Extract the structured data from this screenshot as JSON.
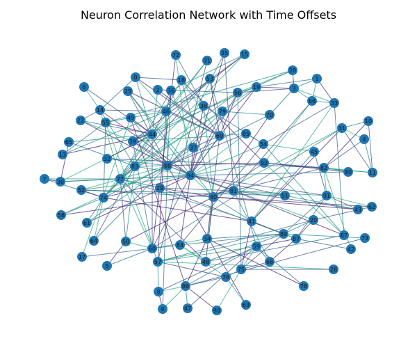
{
  "title": "Neuron Correlation Network with Time Offsets",
  "colors": {
    "node_fill": "#1f77b4",
    "label": "#1a1a1a",
    "edge_palette": [
      "#482475",
      "#3b528b",
      "#2c728e",
      "#21918c",
      "#28ae80"
    ]
  },
  "chart_data": {
    "type": "network",
    "title": "Neuron Correlation Network with Time Offsets",
    "node_ids": [
      "0",
      "1",
      "2",
      "3",
      "4",
      "5",
      "6",
      "7",
      "8",
      "9",
      "10",
      "11",
      "12",
      "13",
      "14",
      "15",
      "16",
      "17",
      "18",
      "19",
      "20",
      "21",
      "22",
      "23",
      "24",
      "25",
      "26",
      "27",
      "28",
      "29",
      "30",
      "31",
      "32",
      "33",
      "34",
      "35",
      "36",
      "37",
      "38",
      "39",
      "40",
      "41",
      "42",
      "43",
      "44",
      "45",
      "46",
      "47",
      "48",
      "49",
      "50",
      "51",
      "52",
      "53",
      "54",
      "55",
      "56",
      "57",
      "58",
      "59",
      "60",
      "61",
      "62",
      "63",
      "64",
      "65",
      "66",
      "67",
      "68",
      "69",
      "70",
      "71",
      "72",
      "73",
      "74",
      "75",
      "76",
      "77",
      "78",
      "79",
      "80",
      "81",
      "82",
      "83",
      "84",
      "85",
      "86",
      "87",
      "88",
      "89",
      "90",
      "91",
      "92",
      "93",
      "94"
    ],
    "edges": [
      [
        "0",
        "44"
      ],
      [
        "0",
        "69"
      ],
      [
        "0",
        "14"
      ],
      [
        "0",
        "46"
      ],
      [
        "0",
        "18"
      ],
      [
        "1",
        "3"
      ],
      [
        "1",
        "33"
      ],
      [
        "1",
        "19"
      ],
      [
        "1",
        "66"
      ],
      [
        "2",
        "36"
      ],
      [
        "2",
        "44"
      ],
      [
        "2",
        "69"
      ],
      [
        "2",
        "56"
      ],
      [
        "3",
        "33"
      ],
      [
        "3",
        "56"
      ],
      [
        "3",
        "66"
      ],
      [
        "3",
        "19"
      ],
      [
        "3",
        "70"
      ],
      [
        "4",
        "31"
      ],
      [
        "4",
        "82"
      ],
      [
        "4",
        "11"
      ],
      [
        "5",
        "50"
      ],
      [
        "5",
        "60"
      ],
      [
        "6",
        "14"
      ],
      [
        "6",
        "44"
      ],
      [
        "7",
        "77"
      ],
      [
        "7",
        "30"
      ],
      [
        "7",
        "74"
      ],
      [
        "8",
        "86"
      ],
      [
        "8",
        "59"
      ],
      [
        "8",
        "57"
      ],
      [
        "9",
        "8"
      ],
      [
        "9",
        "88"
      ],
      [
        "9",
        "86"
      ],
      [
        "10",
        "11"
      ],
      [
        "10",
        "31"
      ],
      [
        "10",
        "82"
      ],
      [
        "11",
        "92"
      ],
      [
        "11",
        "82"
      ],
      [
        "11",
        "31"
      ],
      [
        "13",
        "46"
      ],
      [
        "13",
        "44"
      ],
      [
        "13",
        "55"
      ],
      [
        "14",
        "77"
      ],
      [
        "14",
        "46"
      ],
      [
        "14",
        "83"
      ],
      [
        "14",
        "94"
      ],
      [
        "14",
        "22"
      ],
      [
        "15",
        "74"
      ],
      [
        "15",
        "46"
      ],
      [
        "15",
        "36"
      ],
      [
        "15",
        "39"
      ],
      [
        "17",
        "60"
      ],
      [
        "17",
        "49"
      ],
      [
        "18",
        "44"
      ],
      [
        "18",
        "69"
      ],
      [
        "18",
        "92"
      ],
      [
        "18",
        "40"
      ],
      [
        "19",
        "77"
      ],
      [
        "19",
        "88"
      ],
      [
        "19",
        "56"
      ],
      [
        "19",
        "94"
      ],
      [
        "20",
        "57"
      ],
      [
        "20",
        "88"
      ],
      [
        "20",
        "87"
      ],
      [
        "20",
        "89"
      ],
      [
        "22",
        "88"
      ],
      [
        "22",
        "44"
      ],
      [
        "22",
        "39"
      ],
      [
        "25",
        "88"
      ],
      [
        "25",
        "40"
      ],
      [
        "25",
        "69"
      ],
      [
        "25",
        "94"
      ],
      [
        "26",
        "57"
      ],
      [
        "26",
        "75"
      ],
      [
        "28",
        "55"
      ],
      [
        "28",
        "3"
      ],
      [
        "28",
        "39"
      ],
      [
        "28",
        "56"
      ],
      [
        "29",
        "89"
      ],
      [
        "29",
        "77"
      ],
      [
        "29",
        "40"
      ],
      [
        "29",
        "81"
      ],
      [
        "30",
        "56"
      ],
      [
        "30",
        "77"
      ],
      [
        "30",
        "94"
      ],
      [
        "31",
        "41"
      ],
      [
        "31",
        "60"
      ],
      [
        "31",
        "40"
      ],
      [
        "32",
        "82"
      ],
      [
        "32",
        "88"
      ],
      [
        "32",
        "44"
      ],
      [
        "33",
        "67"
      ],
      [
        "33",
        "41"
      ],
      [
        "33",
        "54"
      ],
      [
        "34",
        "40"
      ],
      [
        "34",
        "86"
      ],
      [
        "34",
        "89"
      ],
      [
        "34",
        "60"
      ],
      [
        "35",
        "81"
      ],
      [
        "35",
        "88"
      ],
      [
        "35",
        "94"
      ],
      [
        "36",
        "77"
      ],
      [
        "36",
        "37"
      ],
      [
        "36",
        "46"
      ],
      [
        "36",
        "88"
      ],
      [
        "37",
        "94"
      ],
      [
        "37",
        "88"
      ],
      [
        "37",
        "83"
      ],
      [
        "37",
        "69"
      ],
      [
        "38",
        "39"
      ],
      [
        "38",
        "94"
      ],
      [
        "38",
        "54"
      ],
      [
        "38",
        "40"
      ],
      [
        "39",
        "88"
      ],
      [
        "39",
        "69"
      ],
      [
        "39",
        "94"
      ],
      [
        "39",
        "60"
      ],
      [
        "40",
        "94"
      ],
      [
        "40",
        "92"
      ],
      [
        "40",
        "81"
      ],
      [
        "40",
        "62"
      ],
      [
        "40",
        "41"
      ],
      [
        "41",
        "89"
      ],
      [
        "41",
        "87"
      ],
      [
        "41",
        "77"
      ],
      [
        "41",
        "74"
      ],
      [
        "42",
        "87"
      ],
      [
        "42",
        "82"
      ],
      [
        "43",
        "81"
      ],
      [
        "43",
        "51"
      ],
      [
        "43",
        "40"
      ],
      [
        "43",
        "91"
      ],
      [
        "44",
        "83"
      ],
      [
        "44",
        "60"
      ],
      [
        "44",
        "77"
      ],
      [
        "44",
        "49"
      ],
      [
        "45",
        "41"
      ],
      [
        "45",
        "54"
      ],
      [
        "45",
        "91"
      ],
      [
        "46",
        "49"
      ],
      [
        "46",
        "57"
      ],
      [
        "46",
        "69"
      ],
      [
        "46",
        "88"
      ],
      [
        "47",
        "59"
      ],
      [
        "47",
        "86"
      ],
      [
        "48",
        "40"
      ],
      [
        "48",
        "89"
      ],
      [
        "48",
        "84"
      ],
      [
        "48",
        "77"
      ],
      [
        "49",
        "55"
      ],
      [
        "49",
        "86"
      ],
      [
        "49",
        "88"
      ],
      [
        "50",
        "60"
      ],
      [
        "50",
        "77"
      ],
      [
        "50",
        "83"
      ],
      [
        "50",
        "40"
      ],
      [
        "51",
        "52"
      ],
      [
        "51",
        "81"
      ],
      [
        "51",
        "94"
      ],
      [
        "52",
        "94"
      ],
      [
        "52",
        "74"
      ],
      [
        "52",
        "40"
      ],
      [
        "52",
        "88"
      ],
      [
        "53",
        "74"
      ],
      [
        "53",
        "44"
      ],
      [
        "53",
        "69"
      ],
      [
        "53",
        "59"
      ],
      [
        "54",
        "94"
      ],
      [
        "54",
        "84"
      ],
      [
        "54",
        "67"
      ],
      [
        "55",
        "44"
      ],
      [
        "55",
        "74"
      ],
      [
        "55",
        "57"
      ],
      [
        "56",
        "94"
      ],
      [
        "56",
        "83"
      ],
      [
        "56",
        "69"
      ],
      [
        "56",
        "75"
      ],
      [
        "57",
        "59"
      ],
      [
        "57",
        "76"
      ],
      [
        "57",
        "89"
      ],
      [
        "58",
        "81"
      ],
      [
        "58",
        "74"
      ],
      [
        "58",
        "88"
      ],
      [
        "59",
        "68"
      ],
      [
        "59",
        "75"
      ],
      [
        "59",
        "87"
      ],
      [
        "60",
        "84"
      ],
      [
        "60",
        "77"
      ],
      [
        "60",
        "94"
      ],
      [
        "61",
        "88"
      ],
      [
        "61",
        "94"
      ],
      [
        "61",
        "74"
      ],
      [
        "62",
        "91"
      ],
      [
        "62",
        "20"
      ],
      [
        "63",
        "76"
      ],
      [
        "63",
        "88"
      ],
      [
        "64",
        "88"
      ],
      [
        "64",
        "74"
      ],
      [
        "64",
        "83"
      ],
      [
        "65",
        "44"
      ],
      [
        "65",
        "30"
      ],
      [
        "65",
        "83"
      ],
      [
        "66",
        "92"
      ],
      [
        "66",
        "81"
      ],
      [
        "66",
        "33"
      ],
      [
        "67",
        "81"
      ],
      [
        "67",
        "48"
      ],
      [
        "67",
        "92"
      ],
      [
        "68",
        "75"
      ],
      [
        "68",
        "81"
      ],
      [
        "68",
        "87"
      ],
      [
        "69",
        "94"
      ],
      [
        "69",
        "85"
      ],
      [
        "69",
        "34"
      ],
      [
        "70",
        "79"
      ],
      [
        "70",
        "40"
      ],
      [
        "70",
        "88"
      ],
      [
        "71",
        "74"
      ],
      [
        "71",
        "57"
      ],
      [
        "71",
        "46"
      ],
      [
        "72",
        "60"
      ],
      [
        "72",
        "38"
      ],
      [
        "72",
        "94"
      ],
      [
        "73",
        "86"
      ],
      [
        "73",
        "89"
      ],
      [
        "74",
        "94"
      ],
      [
        "74",
        "88"
      ],
      [
        "74",
        "83"
      ],
      [
        "75",
        "89"
      ],
      [
        "75",
        "76"
      ],
      [
        "75",
        "41"
      ],
      [
        "76",
        "86"
      ],
      [
        "76",
        "84"
      ],
      [
        "77",
        "83"
      ],
      [
        "77",
        "94"
      ],
      [
        "78",
        "34"
      ],
      [
        "78",
        "59"
      ],
      [
        "79",
        "83"
      ],
      [
        "79",
        "94"
      ],
      [
        "79",
        "88"
      ],
      [
        "80",
        "92"
      ],
      [
        "80",
        "94"
      ],
      [
        "80",
        "82"
      ],
      [
        "81",
        "82"
      ],
      [
        "81",
        "91"
      ],
      [
        "81",
        "94"
      ],
      [
        "82",
        "92"
      ],
      [
        "82",
        "91"
      ],
      [
        "83",
        "88"
      ],
      [
        "83",
        "94"
      ],
      [
        "84",
        "94"
      ],
      [
        "84",
        "89"
      ],
      [
        "85",
        "94"
      ],
      [
        "85",
        "88"
      ],
      [
        "85",
        "54"
      ],
      [
        "86",
        "90"
      ],
      [
        "86",
        "59"
      ],
      [
        "87",
        "89"
      ],
      [
        "87",
        "91"
      ],
      [
        "88",
        "94"
      ],
      [
        "88",
        "92"
      ],
      [
        "89",
        "91"
      ],
      [
        "90",
        "75"
      ],
      [
        "91",
        "94"
      ],
      [
        "92",
        "94"
      ]
    ]
  }
}
